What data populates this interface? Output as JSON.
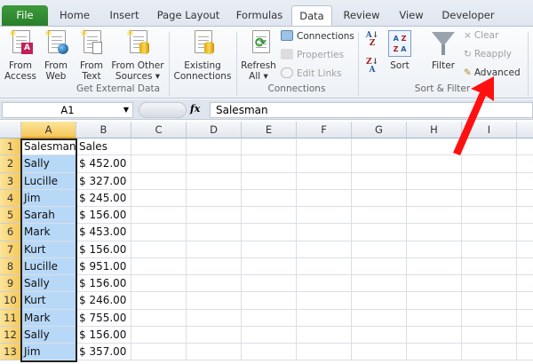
{
  "tabs": [
    "File",
    "Home",
    "Insert",
    "Page Layout",
    "Formulas",
    "Data",
    "Review",
    "View",
    "Developer"
  ],
  "active_tab": "Data",
  "ribbon": {
    "get_external_data": {
      "label": "Get External Data",
      "buttons": [
        [
          "From",
          "Access"
        ],
        [
          "From",
          "Web"
        ],
        [
          "From",
          "Text"
        ],
        [
          "From Other",
          "Sources ▾"
        ],
        [
          "Existing",
          "Connections"
        ]
      ]
    },
    "connections": {
      "label": "Connections",
      "refresh": [
        "Refresh",
        "All ▾"
      ],
      "connections": "Connections",
      "properties": "Properties",
      "edit_links": "Edit Links"
    },
    "sort_filter": {
      "label": "Sort & Filter",
      "sort": "Sort",
      "filter": "Filter",
      "clear": "Clear",
      "reapply": "Reapply",
      "advanced": "Advanced"
    }
  },
  "formula_bar": {
    "name_box": "A1",
    "fx": "fx",
    "value": "Salesman"
  },
  "columns": [
    "A",
    "B",
    "C",
    "D",
    "E",
    "F",
    "G",
    "H",
    "I"
  ],
  "rows": [
    [
      "1",
      "Salesman",
      "Sales"
    ],
    [
      "2",
      "Sally",
      "$ 452.00"
    ],
    [
      "3",
      "Lucille",
      "$ 327.00"
    ],
    [
      "4",
      "Jim",
      "$ 245.00"
    ],
    [
      "5",
      "Sarah",
      "$ 156.00"
    ],
    [
      "6",
      "Mark",
      "$ 453.00"
    ],
    [
      "7",
      "Kurt",
      "$ 156.00"
    ],
    [
      "8",
      "Lucille",
      "$ 951.00"
    ],
    [
      "9",
      "Sally",
      "$ 156.00"
    ],
    [
      "10",
      "Kurt",
      "$ 246.00"
    ],
    [
      "11",
      "Mark",
      "$ 755.00"
    ],
    [
      "12",
      "Sally",
      "$ 156.00"
    ],
    [
      "13",
      "Jim",
      "$ 357.00"
    ]
  ],
  "annotation": {
    "arrow_color": "#ff1010",
    "points_to": "Advanced"
  }
}
